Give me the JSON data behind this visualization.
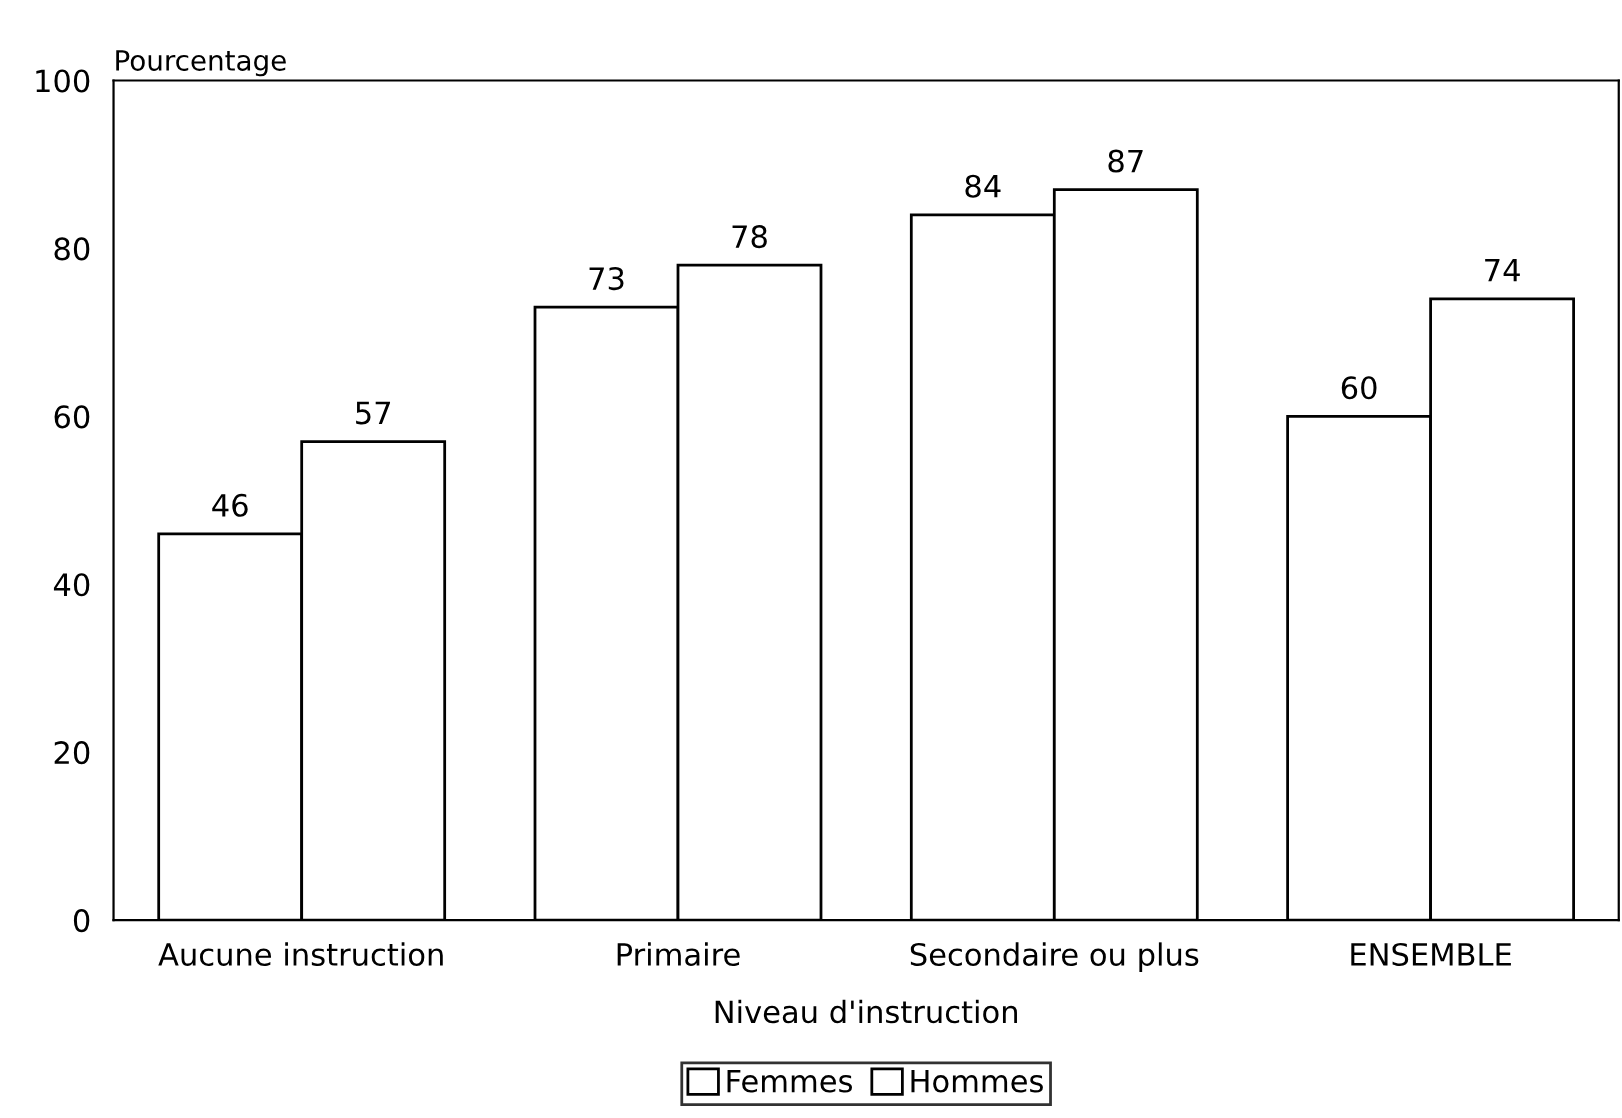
{
  "chart_data": {
    "type": "bar",
    "ylabel": "Pourcentage",
    "xlabel": "Niveau d'instruction",
    "categories": [
      "Aucune instruction",
      "Primaire",
      "Secondaire ou plus",
      "ENSEMBLE"
    ],
    "series": [
      {
        "name": "Femmes",
        "color": "#ffffff",
        "values": [
          46,
          73,
          84,
          60
        ]
      },
      {
        "name": "Hommes",
        "color": "#ffffff",
        "values": [
          57,
          78,
          87,
          74
        ]
      }
    ],
    "ylim": [
      0,
      100
    ],
    "yticks": [
      0,
      20,
      40,
      60,
      80,
      100
    ],
    "grid": false,
    "legend": "bottom",
    "data_labels": true
  }
}
